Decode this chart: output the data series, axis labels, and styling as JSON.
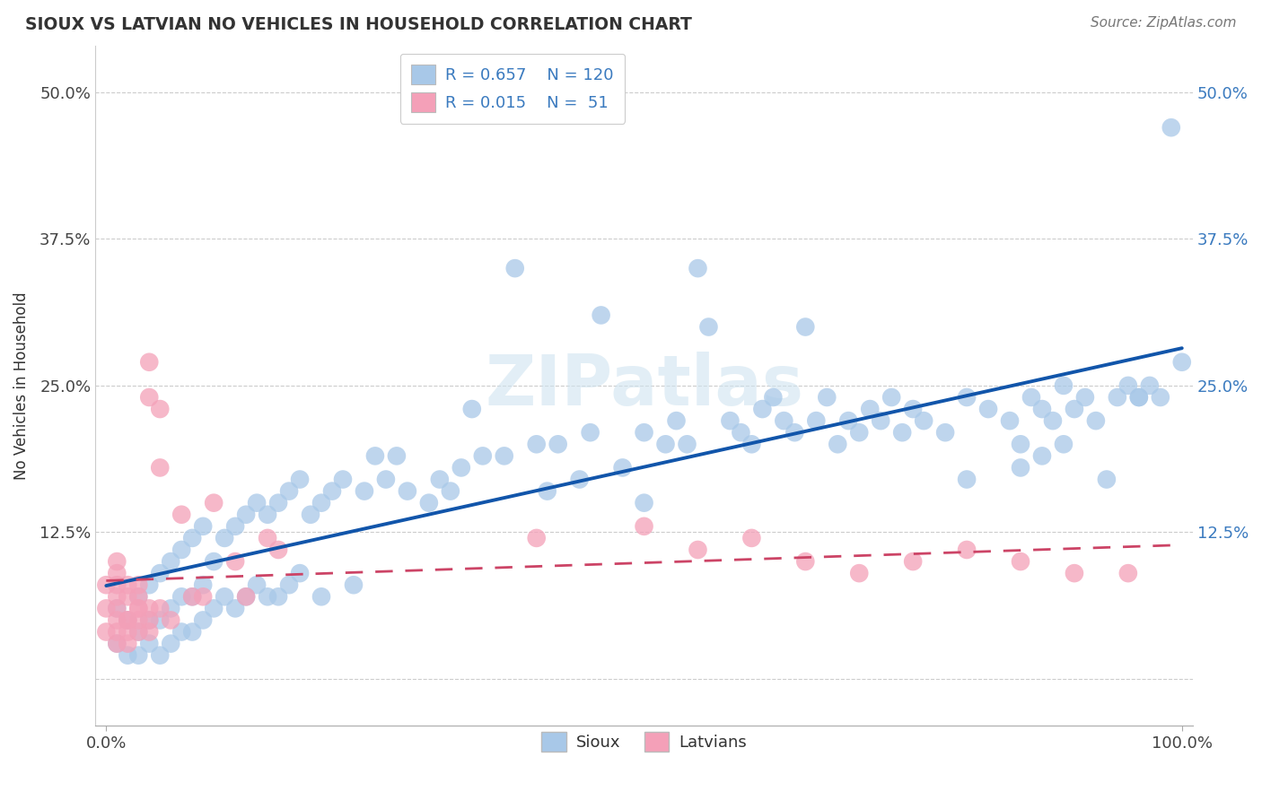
{
  "title": "SIOUX VS LATVIAN NO VEHICLES IN HOUSEHOLD CORRELATION CHART",
  "source": "Source: ZipAtlas.com",
  "xlabel": "",
  "ylabel": "No Vehicles in Household",
  "xlim": [
    -0.01,
    1.01
  ],
  "ylim": [
    -0.04,
    0.54
  ],
  "x_ticks": [
    0.0,
    1.0
  ],
  "x_tick_labels": [
    "0.0%",
    "100.0%"
  ],
  "y_ticks": [
    0.0,
    0.125,
    0.25,
    0.375,
    0.5
  ],
  "y_tick_labels": [
    "",
    "12.5%",
    "25.0%",
    "37.5%",
    "50.0%"
  ],
  "sioux_R": 0.657,
  "sioux_N": 120,
  "latvian_R": 0.015,
  "latvian_N": 51,
  "sioux_color": "#a8c8e8",
  "latvian_color": "#f4a0b8",
  "sioux_line_color": "#1155aa",
  "latvian_line_color": "#cc4466",
  "legend_label_sioux": "Sioux",
  "legend_label_latvian": "Latvians",
  "watermark": "ZIPatlas",
  "background_color": "#ffffff",
  "sioux_x": [
    0.01,
    0.01,
    0.02,
    0.02,
    0.03,
    0.03,
    0.03,
    0.04,
    0.04,
    0.04,
    0.05,
    0.05,
    0.05,
    0.06,
    0.06,
    0.06,
    0.07,
    0.07,
    0.07,
    0.08,
    0.08,
    0.08,
    0.09,
    0.09,
    0.09,
    0.1,
    0.1,
    0.11,
    0.11,
    0.12,
    0.12,
    0.13,
    0.13,
    0.14,
    0.14,
    0.15,
    0.15,
    0.16,
    0.16,
    0.17,
    0.17,
    0.18,
    0.18,
    0.19,
    0.2,
    0.2,
    0.21,
    0.22,
    0.23,
    0.24,
    0.25,
    0.26,
    0.27,
    0.28,
    0.3,
    0.31,
    0.32,
    0.33,
    0.34,
    0.35,
    0.37,
    0.38,
    0.4,
    0.41,
    0.42,
    0.44,
    0.45,
    0.46,
    0.48,
    0.5,
    0.5,
    0.52,
    0.53,
    0.54,
    0.55,
    0.56,
    0.58,
    0.59,
    0.6,
    0.61,
    0.62,
    0.63,
    0.64,
    0.65,
    0.66,
    0.67,
    0.68,
    0.69,
    0.7,
    0.71,
    0.72,
    0.73,
    0.74,
    0.75,
    0.76,
    0.78,
    0.8,
    0.82,
    0.84,
    0.85,
    0.86,
    0.87,
    0.88,
    0.89,
    0.9,
    0.91,
    0.92,
    0.94,
    0.95,
    0.96,
    0.97,
    0.98,
    0.99,
    1.0,
    0.8,
    0.85,
    0.87,
    0.89,
    0.93,
    0.96
  ],
  "sioux_y": [
    0.03,
    0.06,
    0.02,
    0.05,
    0.02,
    0.04,
    0.07,
    0.03,
    0.05,
    0.08,
    0.02,
    0.05,
    0.09,
    0.03,
    0.06,
    0.1,
    0.04,
    0.07,
    0.11,
    0.04,
    0.07,
    0.12,
    0.05,
    0.08,
    0.13,
    0.06,
    0.1,
    0.07,
    0.12,
    0.06,
    0.13,
    0.07,
    0.14,
    0.08,
    0.15,
    0.07,
    0.14,
    0.07,
    0.15,
    0.08,
    0.16,
    0.09,
    0.17,
    0.14,
    0.07,
    0.15,
    0.16,
    0.17,
    0.08,
    0.16,
    0.19,
    0.17,
    0.19,
    0.16,
    0.15,
    0.17,
    0.16,
    0.18,
    0.23,
    0.19,
    0.19,
    0.35,
    0.2,
    0.16,
    0.2,
    0.17,
    0.21,
    0.31,
    0.18,
    0.15,
    0.21,
    0.2,
    0.22,
    0.2,
    0.35,
    0.3,
    0.22,
    0.21,
    0.2,
    0.23,
    0.24,
    0.22,
    0.21,
    0.3,
    0.22,
    0.24,
    0.2,
    0.22,
    0.21,
    0.23,
    0.22,
    0.24,
    0.21,
    0.23,
    0.22,
    0.21,
    0.24,
    0.23,
    0.22,
    0.2,
    0.24,
    0.23,
    0.22,
    0.25,
    0.23,
    0.24,
    0.22,
    0.24,
    0.25,
    0.24,
    0.25,
    0.24,
    0.47,
    0.27,
    0.17,
    0.18,
    0.19,
    0.2,
    0.17,
    0.24
  ],
  "latvian_x": [
    0.0,
    0.0,
    0.0,
    0.01,
    0.01,
    0.01,
    0.01,
    0.01,
    0.01,
    0.01,
    0.01,
    0.02,
    0.02,
    0.02,
    0.02,
    0.02,
    0.03,
    0.03,
    0.03,
    0.03,
    0.03,
    0.04,
    0.04,
    0.04,
    0.04,
    0.05,
    0.05,
    0.06,
    0.07,
    0.08,
    0.09,
    0.1,
    0.12,
    0.13,
    0.15,
    0.16,
    0.4,
    0.5,
    0.55,
    0.6,
    0.65,
    0.7,
    0.75,
    0.8,
    0.85,
    0.9,
    0.95,
    0.02,
    0.03,
    0.04,
    0.05
  ],
  "latvian_y": [
    0.04,
    0.06,
    0.08,
    0.03,
    0.04,
    0.05,
    0.06,
    0.07,
    0.08,
    0.09,
    0.1,
    0.03,
    0.04,
    0.05,
    0.07,
    0.08,
    0.04,
    0.05,
    0.06,
    0.07,
    0.08,
    0.04,
    0.24,
    0.27,
    0.06,
    0.18,
    0.23,
    0.05,
    0.14,
    0.07,
    0.07,
    0.15,
    0.1,
    0.07,
    0.12,
    0.11,
    0.12,
    0.13,
    0.11,
    0.12,
    0.1,
    0.09,
    0.1,
    0.11,
    0.1,
    0.09,
    0.09,
    0.05,
    0.06,
    0.05,
    0.06
  ]
}
